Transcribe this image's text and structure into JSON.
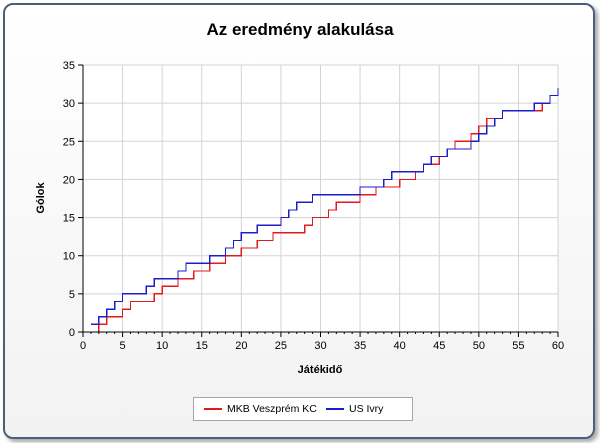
{
  "chart_data": {
    "type": "line",
    "title": "Az eredmény alakulása",
    "xlabel": "Játékidő",
    "ylabel": "Gólok",
    "xlim": [
      0,
      60
    ],
    "ylim": [
      0,
      35
    ],
    "x_ticks": [
      "0",
      "5",
      "10",
      "15",
      "20",
      "25",
      "30",
      "35",
      "40",
      "45",
      "50",
      "55",
      "60"
    ],
    "y_ticks": [
      "0",
      "5",
      "10",
      "15",
      "20",
      "25",
      "30",
      "35"
    ],
    "grid": true,
    "legend_position": "bottom",
    "step": true,
    "series": [
      {
        "name": "MKB Veszprém KC",
        "color": "#e31a1c",
        "points": [
          [
            2,
            0
          ],
          [
            2,
            1
          ],
          [
            3,
            2
          ],
          [
            5,
            3
          ],
          [
            6,
            4
          ],
          [
            9,
            5
          ],
          [
            10,
            6
          ],
          [
            12,
            7
          ],
          [
            14,
            8
          ],
          [
            16,
            9
          ],
          [
            18,
            10
          ],
          [
            20,
            11
          ],
          [
            22,
            12
          ],
          [
            24,
            13
          ],
          [
            28,
            14
          ],
          [
            29,
            15
          ],
          [
            31,
            16
          ],
          [
            32,
            17
          ],
          [
            35,
            18
          ],
          [
            37,
            19
          ],
          [
            40,
            20
          ],
          [
            42,
            21
          ],
          [
            43,
            22
          ],
          [
            45,
            23
          ],
          [
            46,
            24
          ],
          [
            47,
            25
          ],
          [
            49,
            26
          ],
          [
            50,
            27
          ],
          [
            51,
            28
          ],
          [
            53,
            29
          ],
          [
            58,
            30
          ],
          [
            59,
            31
          ]
        ]
      },
      {
        "name": "US Ivry",
        "color": "#1e1ec8",
        "points": [
          [
            1,
            1
          ],
          [
            2,
            2
          ],
          [
            3,
            3
          ],
          [
            4,
            4
          ],
          [
            5,
            5
          ],
          [
            8,
            6
          ],
          [
            9,
            7
          ],
          [
            12,
            8
          ],
          [
            13,
            9
          ],
          [
            16,
            10
          ],
          [
            18,
            11
          ],
          [
            19,
            12
          ],
          [
            20,
            13
          ],
          [
            22,
            14
          ],
          [
            25,
            15
          ],
          [
            26,
            16
          ],
          [
            27,
            17
          ],
          [
            29,
            18
          ],
          [
            35,
            19
          ],
          [
            38,
            20
          ],
          [
            39,
            21
          ],
          [
            43,
            22
          ],
          [
            44,
            23
          ],
          [
            46,
            24
          ],
          [
            49,
            25
          ],
          [
            50,
            26
          ],
          [
            51,
            27
          ],
          [
            52,
            28
          ],
          [
            53,
            29
          ],
          [
            57,
            30
          ],
          [
            59,
            31
          ],
          [
            60,
            32
          ]
        ]
      }
    ]
  }
}
